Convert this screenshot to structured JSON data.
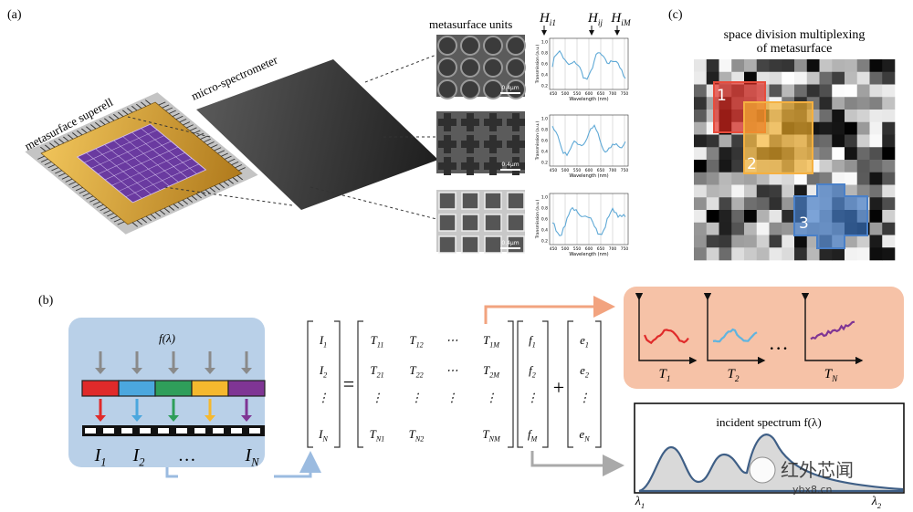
{
  "panel_a": {
    "label": "(a)",
    "superell_label": "metasurface superell",
    "spectrometer_label": "micro-spectrometer",
    "units_title": "metasurface units",
    "h_labels": [
      {
        "symbol": "H",
        "sub": "i1"
      },
      {
        "symbol": "H",
        "sub": "ij"
      },
      {
        "symbol": "H",
        "sub": "iM"
      }
    ],
    "scale_bars": [
      "0.4μm",
      "0.4μm",
      "0.4μm"
    ],
    "plot_axes": {
      "ylabel": "Transmission (a.u.)",
      "xlabel": "Wavelength (nm)",
      "xticks": [
        "450",
        "500",
        "550",
        "600",
        "650",
        "700",
        "750"
      ],
      "yticks": [
        "0.2",
        "0.4",
        "0.6",
        "0.8",
        "1.0"
      ]
    }
  },
  "panel_b": {
    "label": "(b)",
    "source": "f(λ)",
    "detectors": [
      {
        "symbol": "I",
        "sub": "1"
      },
      {
        "symbol": "I",
        "sub": "2"
      },
      {
        "symbol": "…"
      },
      {
        "symbol": "I",
        "sub": "N"
      }
    ],
    "i_vector": [
      {
        "symbol": "I",
        "sub": "1"
      },
      {
        "symbol": "I",
        "sub": "2"
      },
      {
        "symbol": "⋮"
      },
      {
        "symbol": "I",
        "sub": "N"
      }
    ],
    "equals": "=",
    "t_matrix": [
      [
        {
          "symbol": "T",
          "sub": "11"
        },
        {
          "symbol": "T",
          "sub": "12"
        },
        {
          "symbol": "⋯"
        },
        {
          "symbol": "T",
          "sub": "1M"
        }
      ],
      [
        {
          "symbol": "T",
          "sub": "21"
        },
        {
          "symbol": "T",
          "sub": "22"
        },
        {
          "symbol": "⋯"
        },
        {
          "symbol": "T",
          "sub": "2M"
        }
      ],
      [
        {
          "symbol": "⋮"
        },
        {
          "symbol": "⋮"
        },
        {
          "symbol": "⋮"
        },
        {
          "symbol": "⋮"
        }
      ],
      [
        {
          "symbol": "T",
          "sub": "N1"
        },
        {
          "symbol": "T",
          "sub": "N2"
        },
        {
          "symbol": "T",
          "sub": "NM"
        }
      ]
    ],
    "f_vector": [
      {
        "symbol": "f",
        "sub": "1"
      },
      {
        "symbol": "f",
        "sub": "2"
      },
      {
        "symbol": "⋮"
      },
      {
        "symbol": "f",
        "sub": "M"
      }
    ],
    "plus": "+",
    "e_vector": [
      {
        "symbol": "e",
        "sub": "1"
      },
      {
        "symbol": "e",
        "sub": "2"
      },
      {
        "symbol": "⋮"
      },
      {
        "symbol": "e",
        "sub": "N"
      }
    ],
    "transmissions": [
      {
        "symbol": "T",
        "sub": "1"
      },
      {
        "symbol": "T",
        "sub": "2"
      },
      {
        "symbol": "…"
      },
      {
        "symbol": "T",
        "sub": "N"
      }
    ],
    "spectrum_title": "incident spectrum f(λ)",
    "lambda_start": {
      "symbol": "λ",
      "sub": "1"
    },
    "lambda_end": {
      "symbol": "λ",
      "sub": "2"
    }
  },
  "panel_c": {
    "label": "(c)",
    "title_lines": [
      "space division multiplexing",
      "of metasurface"
    ],
    "regions": [
      "1",
      "2",
      "3"
    ]
  },
  "watermark": {
    "name": "红外芯闻",
    "url": "ybx8.cn"
  }
}
